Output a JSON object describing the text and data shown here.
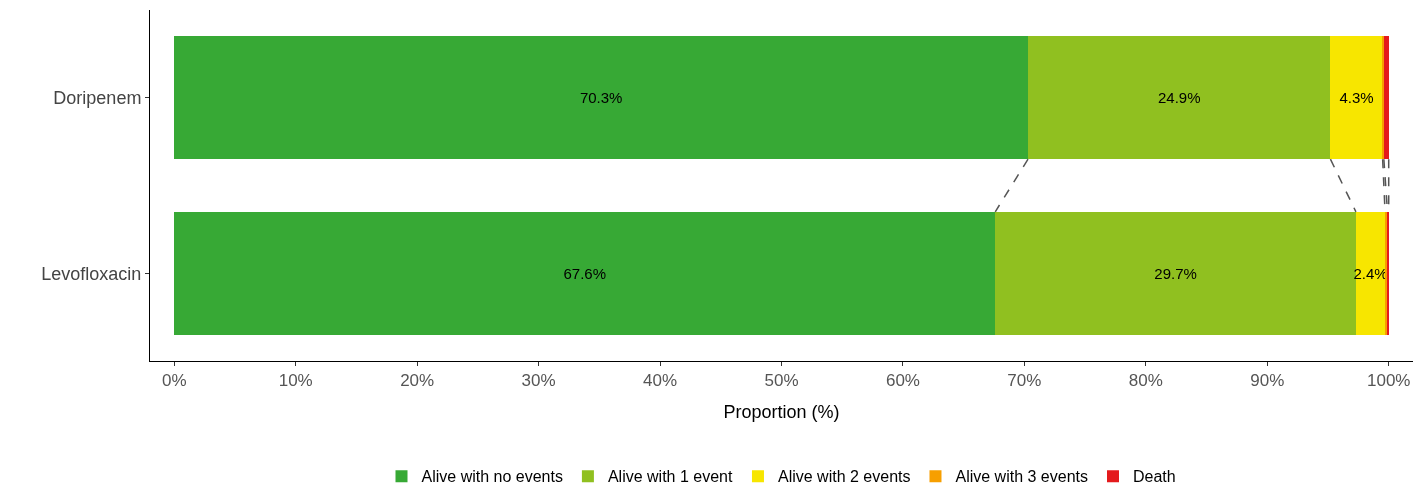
{
  "chart_data": {
    "type": "bar",
    "orientation": "horizontal",
    "stacked": true,
    "xlabel": "Proportion (%)",
    "categories": [
      "Doripenem",
      "Levofloxacin"
    ],
    "series": [
      {
        "name": "Alive with no events",
        "color": "#37a935",
        "values": [
          70.3,
          67.6
        ],
        "value_labels": [
          "70.3%",
          "67.6%"
        ]
      },
      {
        "name": "Alive with 1 event",
        "color": "#90c020",
        "values": [
          24.9,
          29.7
        ],
        "value_labels": [
          "24.9%",
          "29.7%"
        ]
      },
      {
        "name": "Alive with 2 events",
        "color": "#f7e600",
        "values": [
          4.3,
          2.4
        ],
        "value_labels": [
          "4.3%",
          "2.4%"
        ]
      },
      {
        "name": "Alive with 3 events",
        "color": "#f79f00",
        "values": [
          0.1,
          0.2
        ]
      },
      {
        "name": "Death",
        "color": "#e41a1c",
        "values": [
          0.4,
          0.1
        ]
      }
    ],
    "xlim": [
      -2,
      102
    ],
    "xticks": [
      {
        "value": 0,
        "label": "0%"
      },
      {
        "value": 10,
        "label": "10%"
      },
      {
        "value": 20,
        "label": "20%"
      },
      {
        "value": 30,
        "label": "30%"
      },
      {
        "value": 40,
        "label": "40%"
      },
      {
        "value": 50,
        "label": "50%"
      },
      {
        "value": 60,
        "label": "60%"
      },
      {
        "value": 70,
        "label": "70%"
      },
      {
        "value": 80,
        "label": "80%"
      },
      {
        "value": 90,
        "label": "90%"
      },
      {
        "value": 100,
        "label": "100%"
      }
    ],
    "legend": "bottom"
  }
}
